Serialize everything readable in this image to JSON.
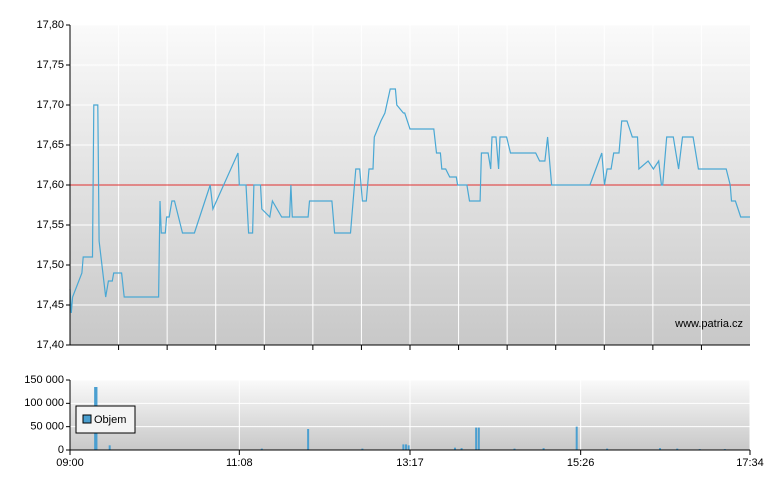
{
  "chart_data": [
    {
      "type": "line",
      "xlim": [
        "09:00",
        "17:34"
      ],
      "ylim": [
        17.4,
        17.8
      ],
      "yticks": [
        {
          "value": 17.4,
          "label": "17,40"
        },
        {
          "value": 17.45,
          "label": "17,45"
        },
        {
          "value": 17.5,
          "label": "17,50"
        },
        {
          "value": 17.55,
          "label": "17,55"
        },
        {
          "value": 17.6,
          "label": "17,60"
        },
        {
          "value": 17.65,
          "label": "17,65"
        },
        {
          "value": 17.7,
          "label": "17,70"
        },
        {
          "value": 17.75,
          "label": "17,75"
        },
        {
          "value": 17.8,
          "label": "17,80"
        }
      ],
      "grid": true,
      "reference_line": {
        "value": 17.6,
        "color": "#e03030"
      },
      "annotation": "www.patria.cz",
      "x": [
        "09:00",
        "09:01",
        "09:02",
        "09:09",
        "09:10",
        "09:17",
        "09:18",
        "09:21",
        "09:22",
        "09:27",
        "09:29",
        "09:32",
        "09:33",
        "09:39",
        "09:41",
        "10:07",
        "10:08",
        "10:09",
        "10:12",
        "10:13",
        "10:15",
        "10:17",
        "10:19",
        "10:25",
        "10:34",
        "10:46",
        "10:48",
        "11:07",
        "11:08",
        "11:13",
        "11:15",
        "11:18",
        "11:19",
        "11:24",
        "11:25",
        "11:31",
        "11:33",
        "11:40",
        "11:46",
        "11:47",
        "11:48",
        "12:00",
        "12:01",
        "12:18",
        "12:20",
        "12:32",
        "12:33",
        "12:36",
        "12:39",
        "12:41",
        "12:44",
        "12:46",
        "12:49",
        "12:50",
        "12:55",
        "12:58",
        "13:02",
        "13:06",
        "13:07",
        "13:12",
        "13:13",
        "13:17",
        "13:35",
        "13:37",
        "13:40",
        "13:41",
        "13:44",
        "13:47",
        "13:52",
        "13:53",
        "14:00",
        "14:02",
        "14:10",
        "14:11",
        "14:16",
        "14:18",
        "14:19",
        "14:22",
        "14:24",
        "14:25",
        "14:30",
        "14:33",
        "14:52",
        "14:55",
        "14:59",
        "15:01",
        "15:04",
        "15:33",
        "15:42",
        "15:44",
        "15:46",
        "15:49",
        "15:51",
        "15:55",
        "15:57",
        "16:01",
        "16:05",
        "16:09",
        "16:10",
        "16:17",
        "16:21",
        "16:25",
        "16:27",
        "16:28",
        "16:31",
        "16:36",
        "16:38",
        "16:40",
        "16:43",
        "16:51",
        "16:55",
        "17:16",
        "17:19",
        "17:20",
        "17:23",
        "17:27",
        "17:34"
      ],
      "series": [
        {
          "color": "#4aa8d4",
          "values": [
            17.47,
            17.44,
            17.46,
            17.49,
            17.51,
            17.51,
            17.7,
            17.7,
            17.53,
            17.46,
            17.48,
            17.48,
            17.49,
            17.49,
            17.46,
            17.46,
            17.58,
            17.54,
            17.54,
            17.56,
            17.56,
            17.58,
            17.58,
            17.54,
            17.54,
            17.6,
            17.57,
            17.64,
            17.6,
            17.6,
            17.54,
            17.54,
            17.6,
            17.6,
            17.57,
            17.56,
            17.58,
            17.56,
            17.56,
            17.6,
            17.56,
            17.56,
            17.58,
            17.58,
            17.54,
            17.54,
            17.56,
            17.62,
            17.62,
            17.58,
            17.58,
            17.62,
            17.62,
            17.66,
            17.68,
            17.69,
            17.72,
            17.72,
            17.7,
            17.69,
            17.69,
            17.67,
            17.67,
            17.64,
            17.64,
            17.62,
            17.62,
            17.61,
            17.61,
            17.6,
            17.6,
            17.58,
            17.58,
            17.64,
            17.64,
            17.62,
            17.66,
            17.66,
            17.62,
            17.66,
            17.66,
            17.64,
            17.64,
            17.63,
            17.63,
            17.66,
            17.6,
            17.6,
            17.64,
            17.6,
            17.62,
            17.62,
            17.64,
            17.64,
            17.68,
            17.68,
            17.66,
            17.66,
            17.62,
            17.63,
            17.62,
            17.63,
            17.6,
            17.6,
            17.66,
            17.66,
            17.64,
            17.62,
            17.66,
            17.66,
            17.62,
            17.62,
            17.6,
            17.58,
            17.58,
            17.56,
            17.56
          ]
        }
      ]
    },
    {
      "type": "bar",
      "xlim": [
        "09:00",
        "17:34"
      ],
      "xticks": [
        "09:00",
        "11:08",
        "13:17",
        "15:26",
        "17:34"
      ],
      "ylim": [
        0,
        150000
      ],
      "yticks": [
        0,
        {
          "value": 50000,
          "label": "50 000"
        },
        {
          "value": 100000,
          "label": "100 000"
        },
        {
          "value": 150000,
          "label": "150 000"
        }
      ],
      "grid": true,
      "x": [
        "09:19",
        "09:20",
        "09:30",
        "11:25",
        "12:00",
        "12:41",
        "13:12",
        "13:14",
        "13:16",
        "13:51",
        "13:56",
        "14:07",
        "14:09",
        "14:36",
        "14:58",
        "15:23",
        "15:46",
        "16:26",
        "16:39",
        "16:56",
        "17:15"
      ],
      "series": [
        {
          "name": "Objem",
          "color": "#4a9fd0",
          "values": [
            135000,
            135000,
            10000,
            3000,
            45000,
            3000,
            12000,
            12000,
            10000,
            5000,
            4000,
            48000,
            48000,
            3000,
            4000,
            50000,
            3000,
            4000,
            3000,
            2000,
            2000
          ]
        }
      ]
    }
  ]
}
